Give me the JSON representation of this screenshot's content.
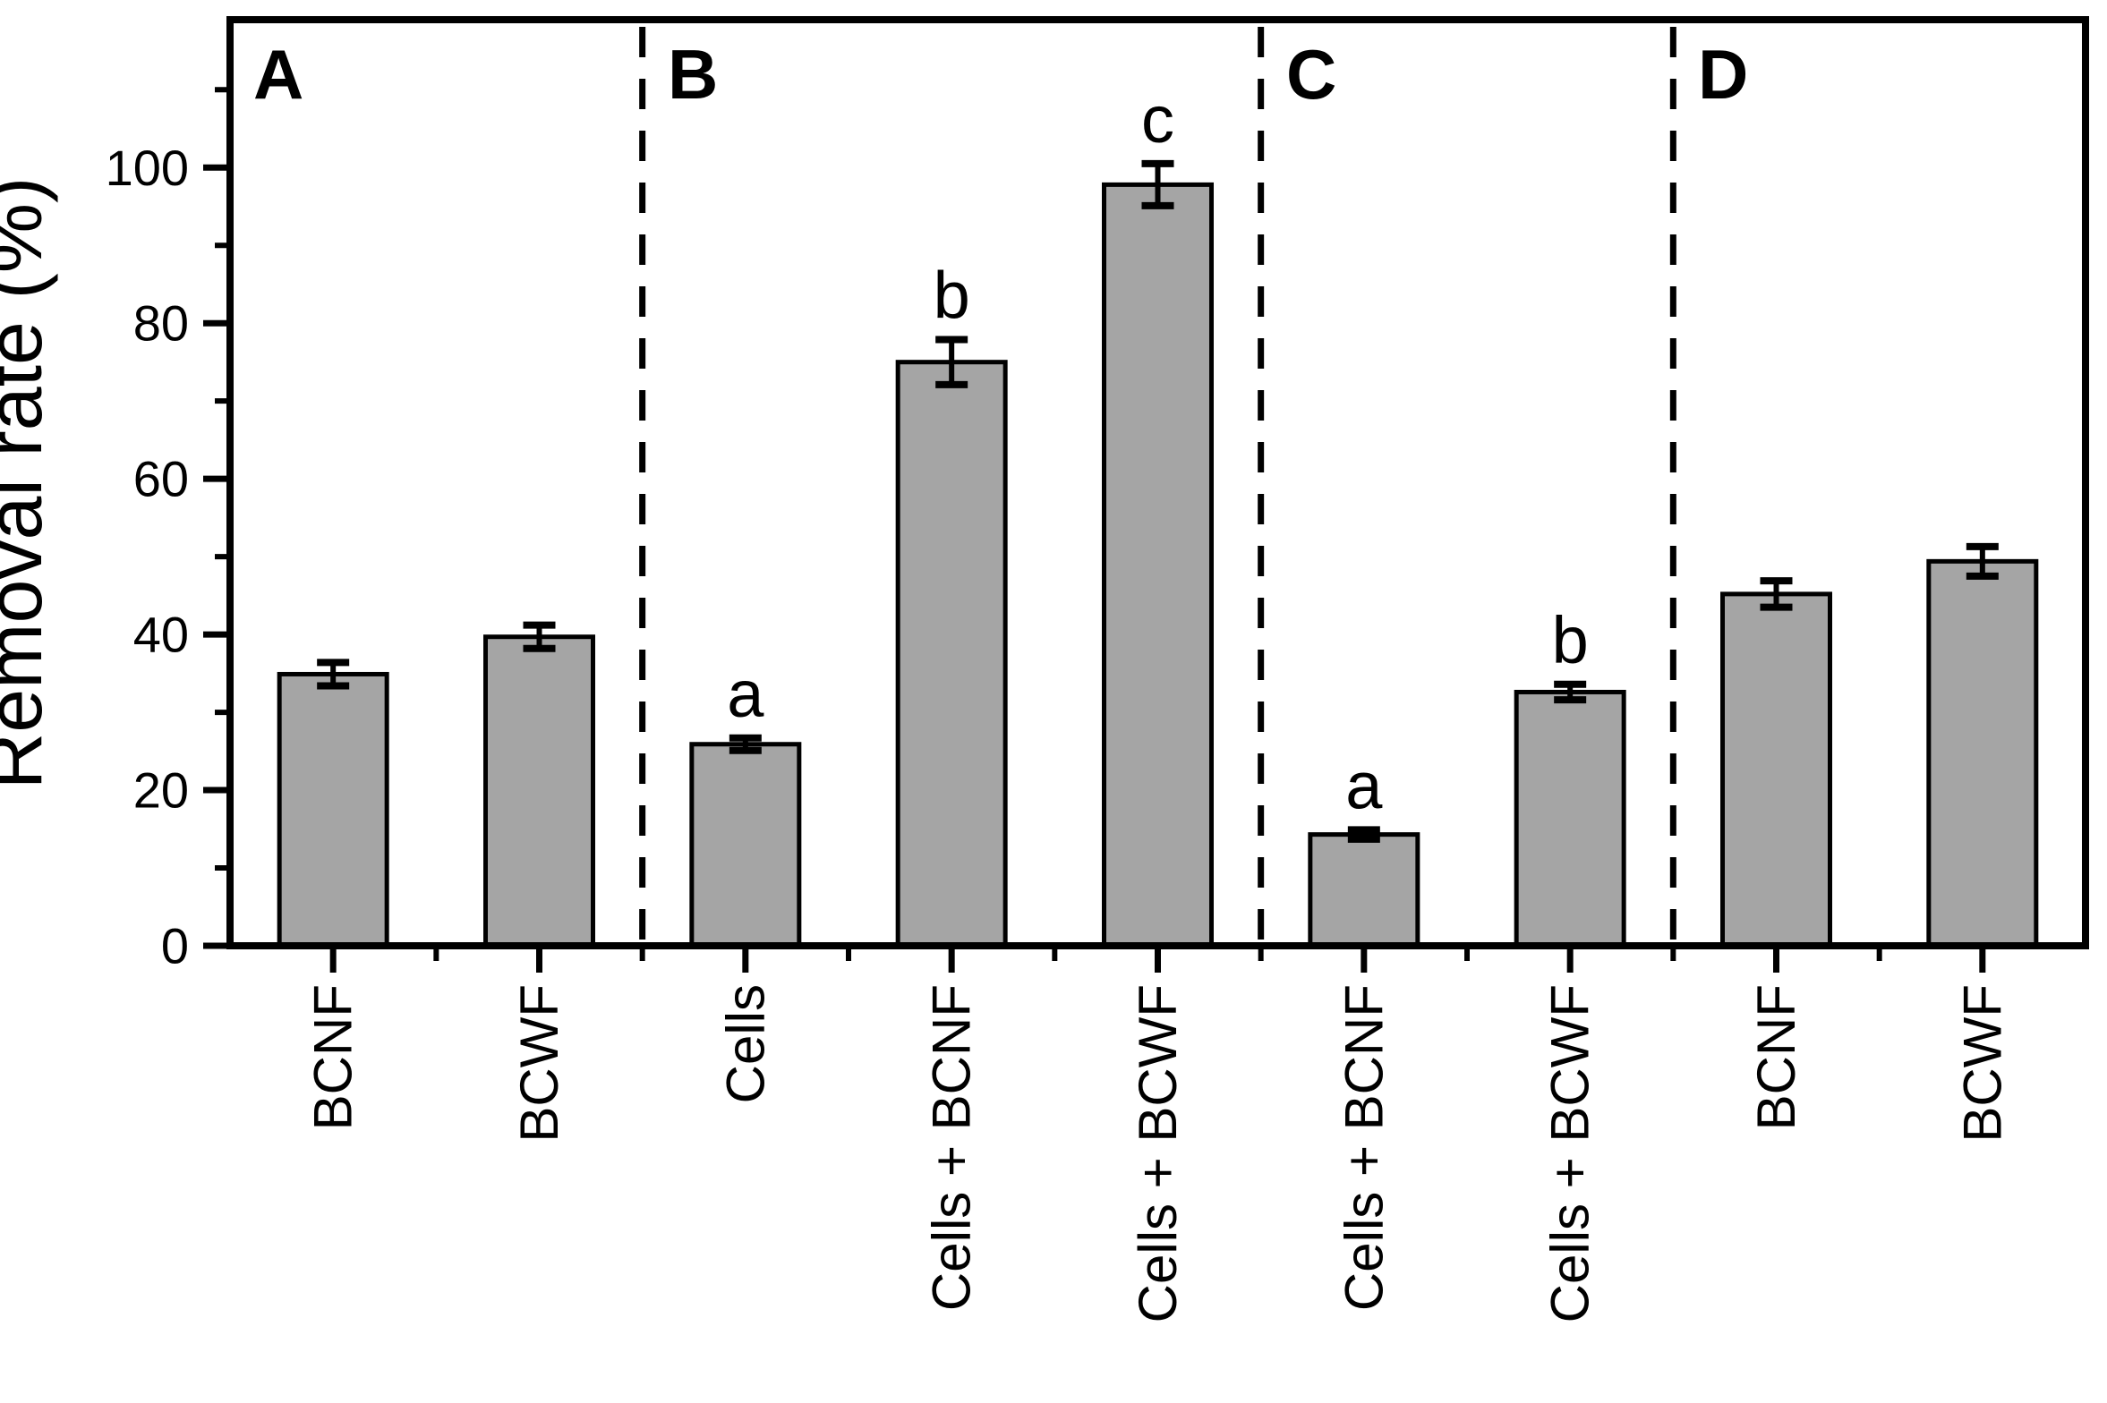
{
  "figure": {
    "background": "#ffffff",
    "text_color": "#000000"
  },
  "chart_data": {
    "type": "bar",
    "title": "",
    "xlabel": "",
    "ylabel": "Removal rate (%)",
    "ylim": [
      0,
      119
    ],
    "grid": false,
    "legend": null,
    "bar_fill": "#a5a5a5",
    "bar_edge": "#000000",
    "error_color": "#000000",
    "divider_color": "#000000",
    "yticks_major": {
      "values": [
        0,
        20,
        40,
        60,
        80,
        100
      ],
      "labels": [
        "0",
        "20",
        "40",
        "60",
        "80",
        "100"
      ]
    },
    "yticks_minor": [
      10,
      30,
      50,
      70,
      90,
      110
    ],
    "categories": [
      "BCNF",
      "BCWF",
      "Cells",
      "Cells + BCNF",
      "Cells + BCWF",
      "Cells + BCNF",
      "Cells + BCWF",
      "BCNF",
      "BCWF"
    ],
    "groups": [
      {
        "panel": "A",
        "bars": [
          {
            "label": "BCNF",
            "value": 34.9,
            "error": 1.5,
            "sig": ""
          },
          {
            "label": "BCWF",
            "value": 39.7,
            "error": 1.5,
            "sig": ""
          }
        ]
      },
      {
        "panel": "B",
        "bars": [
          {
            "label": "Cells",
            "value": 25.9,
            "error": 0.8,
            "sig": "a"
          },
          {
            "label": "Cells + BCNF",
            "value": 75.0,
            "error": 2.9,
            "sig": "b"
          },
          {
            "label": "Cells + BCWF",
            "value": 97.8,
            "error": 2.7,
            "sig": "c"
          }
        ]
      },
      {
        "panel": "C",
        "bars": [
          {
            "label": "Cells + BCNF",
            "value": 14.3,
            "error": 0.6,
            "sig": "a"
          },
          {
            "label": "Cells + BCWF",
            "value": 32.6,
            "error": 1.0,
            "sig": "b"
          }
        ]
      },
      {
        "panel": "D",
        "bars": [
          {
            "label": "BCNF",
            "value": 45.2,
            "error": 1.7,
            "sig": ""
          },
          {
            "label": "BCWF",
            "value": 49.4,
            "error": 1.9,
            "sig": ""
          }
        ]
      }
    ]
  }
}
